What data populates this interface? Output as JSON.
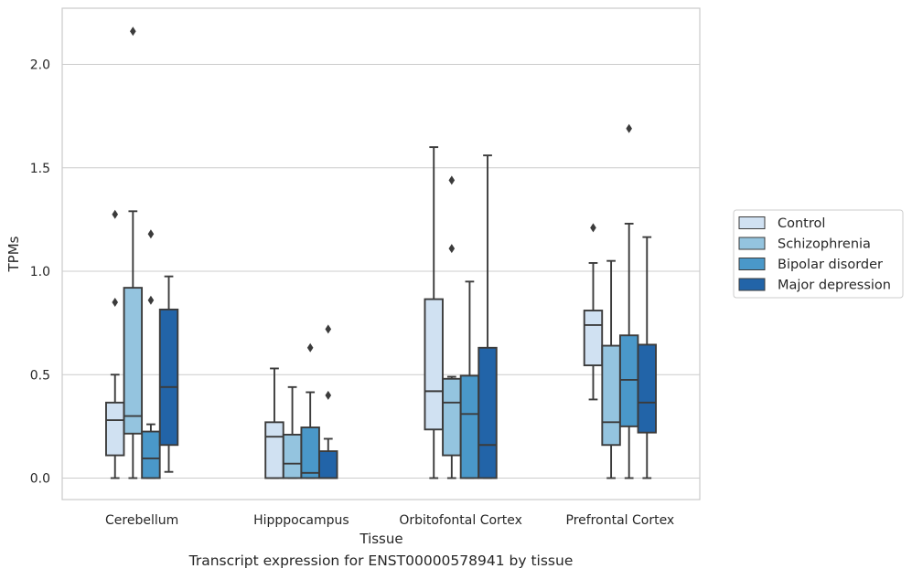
{
  "chart_data": {
    "type": "box",
    "xlabel": "Tissue",
    "ylabel": "TPMs",
    "ylim": [
      -0.1,
      2.28
    ],
    "yticks": [
      0.0,
      0.5,
      1.0,
      1.5,
      2.0
    ],
    "ytick_labels": [
      "0.0",
      "0.5",
      "1.0",
      "1.5",
      "2.0"
    ],
    "grid": "horizontal",
    "legend_placement": "right",
    "categories": [
      "Cerebellum",
      "Hipppocampus",
      "Orbitofontal Cortex",
      "Prefrontal Cortex"
    ],
    "series": [
      {
        "name": "Control",
        "color": "#d0e1f2",
        "boxes": [
          {
            "whisker_low": 0.0,
            "q1": 0.11,
            "median": 0.28,
            "q3": 0.365,
            "whisker_high": 0.5,
            "outliers": [
              0.85,
              1.275
            ]
          },
          {
            "whisker_low": 0.0,
            "q1": 0.0,
            "median": 0.2,
            "q3": 0.27,
            "whisker_high": 0.53,
            "outliers": []
          },
          {
            "whisker_low": 0.0,
            "q1": 0.235,
            "median": 0.42,
            "q3": 0.865,
            "whisker_high": 1.6,
            "outliers": []
          },
          {
            "whisker_low": 0.38,
            "q1": 0.545,
            "median": 0.74,
            "q3": 0.81,
            "whisker_high": 1.04,
            "outliers": [
              1.21
            ]
          }
        ]
      },
      {
        "name": "Schizophrenia",
        "color": "#94c4df",
        "boxes": [
          {
            "whisker_low": 0.0,
            "q1": 0.215,
            "median": 0.3,
            "q3": 0.92,
            "whisker_high": 1.29,
            "outliers": [
              2.16
            ]
          },
          {
            "whisker_low": 0.0,
            "q1": 0.0,
            "median": 0.07,
            "q3": 0.21,
            "whisker_high": 0.44,
            "outliers": []
          },
          {
            "whisker_low": 0.0,
            "q1": 0.11,
            "median": 0.365,
            "q3": 0.48,
            "whisker_high": 0.49,
            "outliers": [
              1.11,
              1.44
            ]
          },
          {
            "whisker_low": 0.0,
            "q1": 0.16,
            "median": 0.27,
            "q3": 0.64,
            "whisker_high": 1.05,
            "outliers": []
          }
        ]
      },
      {
        "name": "Bipolar disorder",
        "color": "#4a98c9",
        "boxes": [
          {
            "whisker_low": 0.0,
            "q1": 0.0,
            "median": 0.095,
            "q3": 0.225,
            "whisker_high": 0.26,
            "outliers": [
              0.86,
              1.18
            ]
          },
          {
            "whisker_low": 0.0,
            "q1": 0.0,
            "median": 0.025,
            "q3": 0.245,
            "whisker_high": 0.415,
            "outliers": [
              0.63
            ]
          },
          {
            "whisker_low": 0.0,
            "q1": 0.0,
            "median": 0.31,
            "q3": 0.495,
            "whisker_high": 0.95,
            "outliers": []
          },
          {
            "whisker_low": 0.0,
            "q1": 0.25,
            "median": 0.475,
            "q3": 0.69,
            "whisker_high": 1.23,
            "outliers": [
              1.69
            ]
          }
        ]
      },
      {
        "name": "Major depression",
        "color": "#2264a8",
        "boxes": [
          {
            "whisker_low": 0.03,
            "q1": 0.16,
            "median": 0.44,
            "q3": 0.815,
            "whisker_high": 0.975,
            "outliers": []
          },
          {
            "whisker_low": 0.0,
            "q1": 0.0,
            "median": 0.0,
            "q3": 0.13,
            "whisker_high": 0.19,
            "outliers": [
              0.4,
              0.72
            ]
          },
          {
            "whisker_low": 0.0,
            "q1": 0.0,
            "median": 0.16,
            "q3": 0.63,
            "whisker_high": 1.56,
            "outliers": []
          },
          {
            "whisker_low": 0.0,
            "q1": 0.22,
            "median": 0.365,
            "q3": 0.645,
            "whisker_high": 1.165,
            "outliers": []
          }
        ]
      }
    ]
  },
  "caption": "Transcript expression for ENST00000578941 by tissue"
}
